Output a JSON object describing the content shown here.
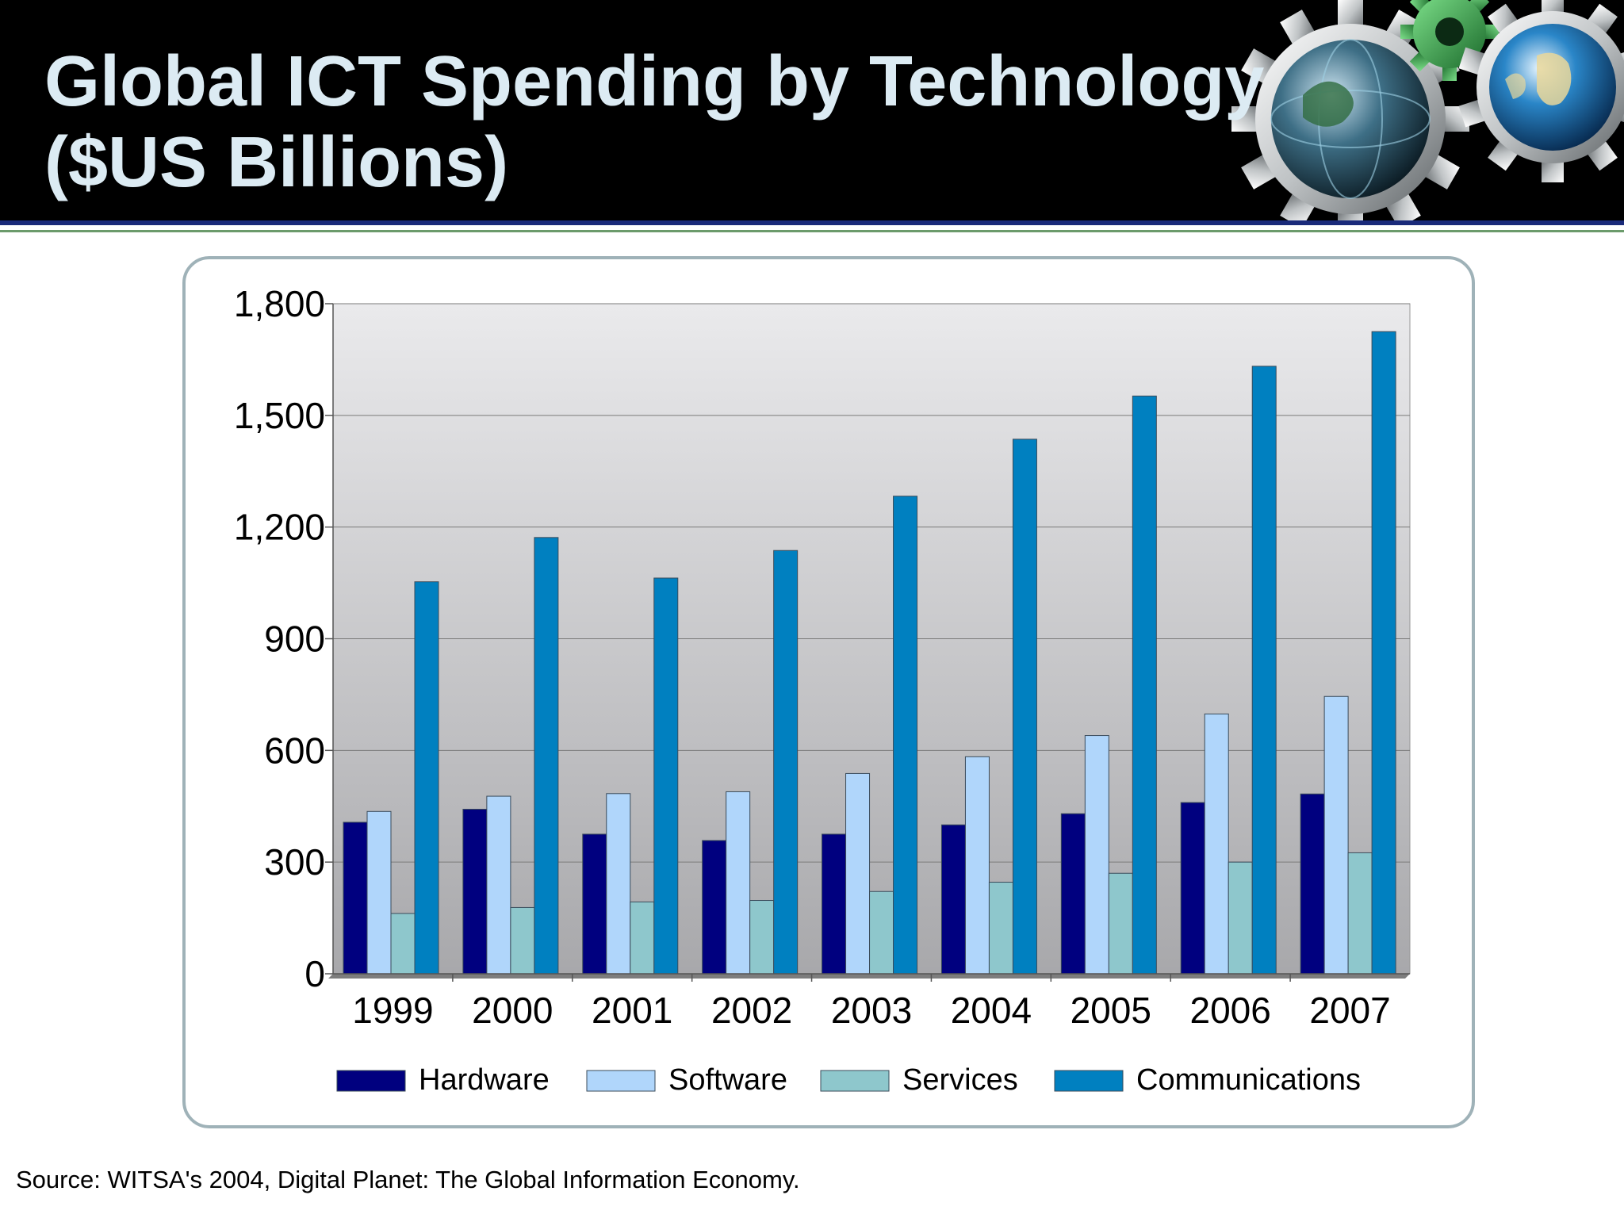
{
  "title_lines": [
    "Global ICT Spending by Technology",
    "($US Billions)"
  ],
  "source": "Source: WITSA's 2004, Digital Planet: The Global Information Economy.",
  "colors": {
    "header_bg": "#000000",
    "title_text": "#dcebf3",
    "panel_border": "#9fb2b8",
    "accent_rule_blue": "#1a2a7a",
    "accent_rule_green": "#6b9b6b"
  },
  "icons": [
    "globe-gears-banner-icon"
  ],
  "chart_data": {
    "type": "bar",
    "categories": [
      "1999",
      "2000",
      "2001",
      "2002",
      "2003",
      "2004",
      "2005",
      "2006",
      "2007"
    ],
    "series": [
      {
        "name": "Hardware",
        "color": "#00007f",
        "values": [
          407,
          442,
          375,
          358,
          375,
          400,
          430,
          460,
          483
        ]
      },
      {
        "name": "Software",
        "color": "#b0d6fb",
        "values": [
          436,
          477,
          484,
          489,
          538,
          583,
          640,
          698,
          745
        ]
      },
      {
        "name": "Services",
        "color": "#8ec7cc",
        "values": [
          162,
          178,
          193,
          197,
          221,
          246,
          270,
          300,
          325
        ]
      },
      {
        "name": "Communications",
        "color": "#0080c0",
        "values": [
          1053,
          1172,
          1063,
          1137,
          1283,
          1436,
          1552,
          1632,
          1725
        ]
      }
    ],
    "y_ticks": [
      "0",
      "300",
      "600",
      "900",
      "1,200",
      "1,500",
      "1,800"
    ],
    "ylim": [
      0,
      1800
    ],
    "grid": true,
    "legend_position": "bottom"
  }
}
